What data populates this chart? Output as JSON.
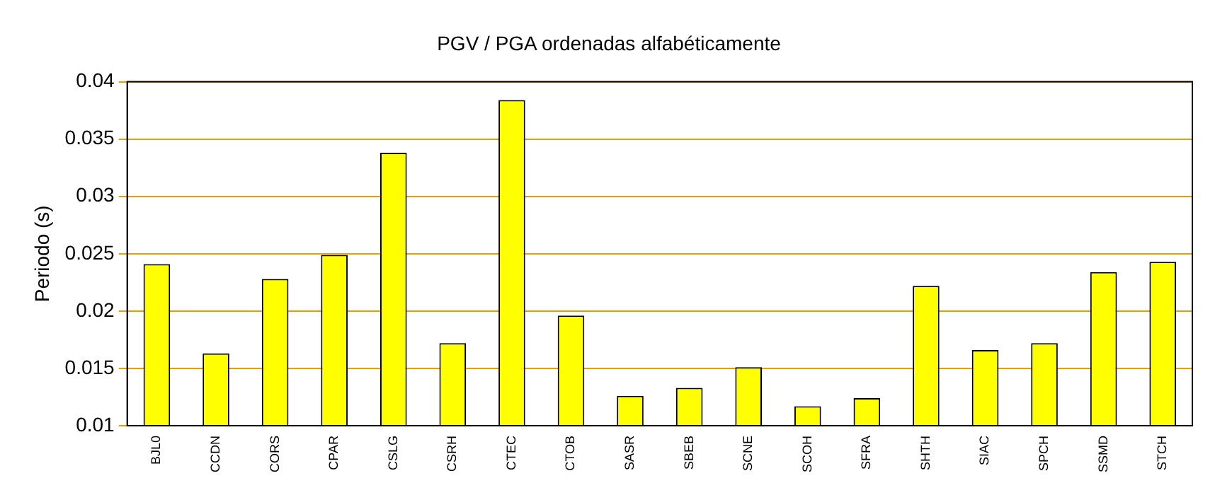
{
  "chart_data": {
    "type": "bar",
    "title": "PGV / PGA ordenadas alfabéticamente",
    "ylabel": "Periodo (s)",
    "categories": [
      "BJL0",
      "CCDN",
      "CORS",
      "CPAR",
      "CSLG",
      "CSRH",
      "CTEC",
      "CTOB",
      "SASR",
      "SBEB",
      "SCNE",
      "SCOH",
      "SFRA",
      "SHTH",
      "SIAC",
      "SPCH",
      "SSMD",
      "STCH"
    ],
    "values": [
      0.0241,
      0.0163,
      0.0228,
      0.0249,
      0.0338,
      0.0172,
      0.0384,
      0.0196,
      0.0126,
      0.0133,
      0.0151,
      0.0117,
      0.0124,
      0.0222,
      0.0166,
      0.0172,
      0.0234,
      0.0243
    ],
    "color": "#ffff00",
    "ylim": [
      0.01,
      0.04
    ],
    "yticks": [
      0.01,
      0.015,
      0.02,
      0.025,
      0.03,
      0.035,
      0.04
    ],
    "grid": "y",
    "legend": false
  }
}
